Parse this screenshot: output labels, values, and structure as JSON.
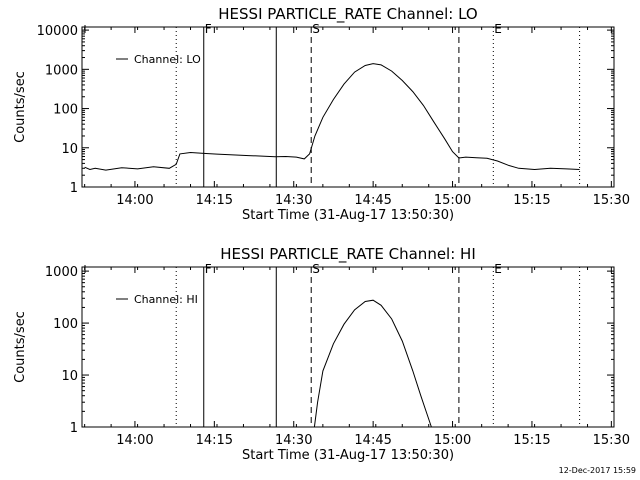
{
  "footer_timestamp": "12-Dec-2017 15:59",
  "chart_data": [
    {
      "type": "line",
      "title": "HESSI PARTICLE_RATE Channel: LO",
      "xlabel": "Start Time (31-Aug-17 13:50:30)",
      "ylabel": "Counts/sec",
      "yscale": "log",
      "xlim_minutes": [
        -0.5,
        100
      ],
      "ylim": [
        1,
        12000
      ],
      "x_ticks": [
        {
          "m": 9.5,
          "label": "14:00"
        },
        {
          "m": 24.5,
          "label": "14:15"
        },
        {
          "m": 39.5,
          "label": "14:30"
        },
        {
          "m": 54.5,
          "label": "14:45"
        },
        {
          "m": 69.5,
          "label": "15:00"
        },
        {
          "m": 84.5,
          "label": "15:15"
        },
        {
          "m": 99.5,
          "label": "15:30"
        }
      ],
      "y_ticks": [
        {
          "v": 1,
          "label": "1"
        },
        {
          "v": 10,
          "label": "10"
        },
        {
          "v": 100,
          "label": "100"
        },
        {
          "v": 1000,
          "label": "1000"
        },
        {
          "v": 10000,
          "label": "10000"
        }
      ],
      "markers": [
        {
          "m": 17.3,
          "style": "dotted",
          "label": ""
        },
        {
          "m": 22.5,
          "style": "solid",
          "label": "F"
        },
        {
          "m": 36.2,
          "style": "solid",
          "label": ""
        },
        {
          "m": 42.8,
          "style": "dashed",
          "label": "S"
        },
        {
          "m": 70.7,
          "style": "dashed",
          "label": ""
        },
        {
          "m": 77.2,
          "style": "dotted",
          "label": "E"
        },
        {
          "m": 93.5,
          "style": "dotted",
          "label": ""
        }
      ],
      "legend": {
        "label": "Channel: LO",
        "position": "top-left"
      },
      "series": [
        {
          "name": "Channel: LO",
          "x": [
            0,
            1,
            2,
            4,
            7,
            10,
            13,
            16,
            17.3,
            18,
            20,
            22.5,
            25,
            28,
            31,
            34,
            36,
            38,
            40,
            41.5,
            42.5,
            43.5,
            45,
            47,
            49,
            51,
            53,
            54.5,
            56,
            58,
            60,
            62,
            64,
            66,
            68,
            69.5,
            70.7,
            72,
            74,
            76,
            78,
            80,
            82,
            85,
            88,
            91,
            93.5
          ],
          "y": [
            3.2,
            2.8,
            3.0,
            2.7,
            3.1,
            2.9,
            3.3,
            3.0,
            3.8,
            7.0,
            7.6,
            7.2,
            6.9,
            6.6,
            6.3,
            6.1,
            5.9,
            6.0,
            5.8,
            5.2,
            7.0,
            20,
            60,
            170,
            420,
            850,
            1250,
            1400,
            1300,
            900,
            520,
            270,
            120,
            45,
            17,
            8,
            5.5,
            5.8,
            5.6,
            5.4,
            4.6,
            3.6,
            3.0,
            2.8,
            3.0,
            2.9,
            2.8
          ]
        }
      ]
    },
    {
      "type": "line",
      "title": "HESSI PARTICLE_RATE Channel: HI",
      "xlabel": "Start Time (31-Aug-17 13:50:30)",
      "ylabel": "Counts/sec",
      "yscale": "log",
      "xlim_minutes": [
        -0.5,
        100
      ],
      "ylim": [
        1,
        1200
      ],
      "x_ticks": [
        {
          "m": 9.5,
          "label": "14:00"
        },
        {
          "m": 24.5,
          "label": "14:15"
        },
        {
          "m": 39.5,
          "label": "14:30"
        },
        {
          "m": 54.5,
          "label": "14:45"
        },
        {
          "m": 69.5,
          "label": "15:00"
        },
        {
          "m": 84.5,
          "label": "15:15"
        },
        {
          "m": 99.5,
          "label": "15:30"
        }
      ],
      "y_ticks": [
        {
          "v": 1,
          "label": "1"
        },
        {
          "v": 10,
          "label": "10"
        },
        {
          "v": 100,
          "label": "100"
        },
        {
          "v": 1000,
          "label": "1000"
        }
      ],
      "markers": [
        {
          "m": 17.3,
          "style": "dotted",
          "label": ""
        },
        {
          "m": 22.5,
          "style": "solid",
          "label": "F"
        },
        {
          "m": 36.2,
          "style": "solid",
          "label": ""
        },
        {
          "m": 42.8,
          "style": "dashed",
          "label": "S"
        },
        {
          "m": 70.7,
          "style": "dashed",
          "label": ""
        },
        {
          "m": 77.2,
          "style": "dotted",
          "label": "E"
        },
        {
          "m": 93.5,
          "style": "dotted",
          "label": ""
        }
      ],
      "legend": {
        "label": "Channel: HI",
        "position": "top-left"
      },
      "series": [
        {
          "name": "Channel: HI",
          "x": [
            43.4,
            44,
            45,
            47,
            49,
            51,
            53,
            54.5,
            56,
            58,
            60,
            62,
            63.5,
            64.5,
            65.5
          ],
          "y": [
            1,
            3,
            12,
            40,
            95,
            180,
            260,
            275,
            220,
            120,
            45,
            12,
            4,
            2,
            1
          ]
        }
      ]
    }
  ]
}
